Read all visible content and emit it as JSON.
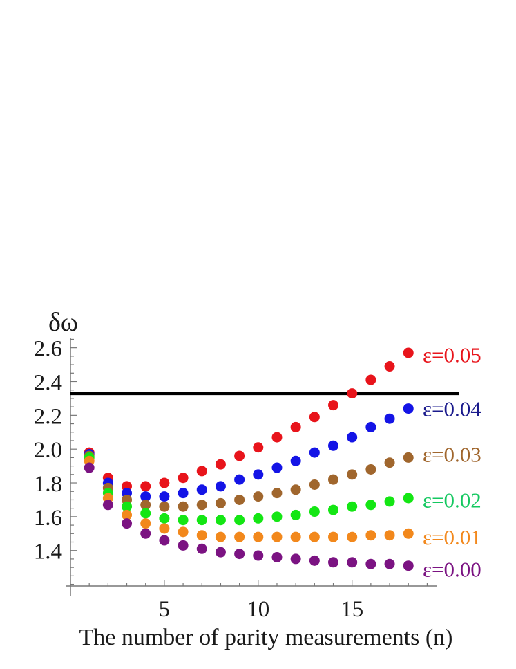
{
  "chart_data": {
    "type": "scatter",
    "title": "",
    "xlabel": "The number of parity measurements  (n)",
    "ylabel": "δω",
    "xlim": [
      0,
      19.5
    ],
    "ylim": [
      1.19,
      2.66
    ],
    "xticks": [
      5,
      10,
      15
    ],
    "yticks": [
      1.4,
      1.6,
      1.8,
      2.0,
      2.2,
      2.4,
      2.6
    ],
    "ytick_labels": [
      "1.4",
      "1.6",
      "1.8",
      "2.0",
      "2.2",
      "2.4",
      "2.6"
    ],
    "grid": false,
    "x": [
      1,
      2,
      3,
      4,
      5,
      6,
      7,
      8,
      9,
      10,
      11,
      12,
      13,
      14,
      15,
      16,
      17,
      18
    ],
    "reference_line": {
      "y": 2.33,
      "color": "#000000"
    },
    "series": [
      {
        "name": "ε=0.05",
        "color": "#e8141b",
        "values": [
          1.98,
          1.83,
          1.78,
          1.78,
          1.8,
          1.83,
          1.87,
          1.91,
          1.96,
          2.01,
          2.07,
          2.13,
          2.19,
          2.26,
          2.33,
          2.41,
          2.49,
          2.57
        ]
      },
      {
        "name": "ε=0.04",
        "color": "#1414e6",
        "values": [
          1.97,
          1.8,
          1.74,
          1.72,
          1.72,
          1.74,
          1.76,
          1.78,
          1.82,
          1.85,
          1.89,
          1.93,
          1.98,
          2.02,
          2.07,
          2.13,
          2.18,
          2.24
        ]
      },
      {
        "name": "ε=0.03",
        "color": "#a0662d",
        "values": [
          1.96,
          1.77,
          1.7,
          1.67,
          1.66,
          1.66,
          1.67,
          1.68,
          1.7,
          1.72,
          1.74,
          1.76,
          1.79,
          1.82,
          1.85,
          1.88,
          1.92,
          1.95
        ]
      },
      {
        "name": "ε=0.02",
        "color": "#14e614",
        "values": [
          1.95,
          1.74,
          1.66,
          1.62,
          1.59,
          1.58,
          1.58,
          1.58,
          1.58,
          1.59,
          1.6,
          1.61,
          1.63,
          1.64,
          1.66,
          1.67,
          1.69,
          1.71
        ]
      },
      {
        "name": "ε=0.01",
        "color": "#f2881c",
        "values": [
          1.93,
          1.71,
          1.61,
          1.56,
          1.53,
          1.51,
          1.49,
          1.48,
          1.48,
          1.48,
          1.48,
          1.48,
          1.48,
          1.48,
          1.48,
          1.49,
          1.49,
          1.5
        ]
      },
      {
        "name": "ε=0.00",
        "color": "#7b1382",
        "values": [
          1.89,
          1.67,
          1.56,
          1.5,
          1.46,
          1.43,
          1.41,
          1.39,
          1.38,
          1.37,
          1.36,
          1.35,
          1.34,
          1.33,
          1.33,
          1.32,
          1.32,
          1.31
        ]
      }
    ],
    "label_values": [
      2.56,
      2.24,
      1.97,
      1.7,
      1.48,
      1.29
    ],
    "label_colors": [
      "#e8141b",
      "#1a1a8c",
      "#a0662d",
      "#14c860",
      "#f2881c",
      "#7b1382"
    ]
  }
}
